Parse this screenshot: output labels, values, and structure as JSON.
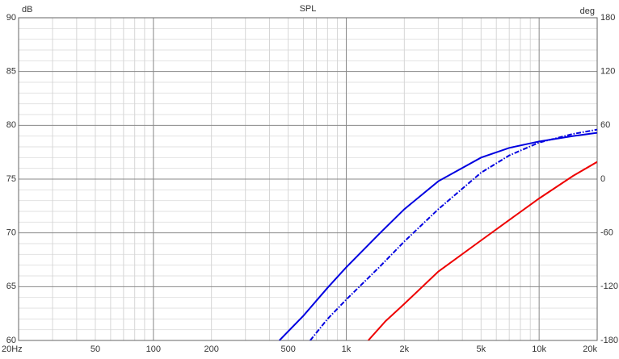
{
  "chart_data": {
    "type": "line",
    "title": "SPL",
    "ylabel": "dB",
    "y2label": "deg",
    "xscale": "log",
    "xlim": [
      20,
      20000
    ],
    "xticks": [
      {
        "value": 20,
        "label": "20Hz"
      },
      50,
      100,
      200,
      500,
      {
        "value": 1000,
        "label": "1k"
      },
      {
        "value": 2000,
        "label": "2k"
      },
      {
        "value": 5000,
        "label": "5k"
      },
      {
        "value": 10000,
        "label": "10k"
      },
      {
        "value": 20000,
        "label": "20k"
      }
    ],
    "xmajor_grid": [
      100,
      1000,
      10000
    ],
    "xminor_grid": [
      30,
      40,
      50,
      60,
      70,
      80,
      90,
      200,
      300,
      400,
      500,
      600,
      700,
      800,
      900,
      2000,
      3000,
      4000,
      5000,
      6000,
      7000,
      8000,
      9000
    ],
    "ylim": [
      60,
      90
    ],
    "yticks": [
      60,
      65,
      70,
      75,
      80,
      85,
      90
    ],
    "yminor_grid": [
      61,
      62,
      63,
      64,
      66,
      67,
      68,
      69,
      71,
      72,
      73,
      74,
      76,
      77,
      78,
      79,
      81,
      82,
      83,
      84,
      86,
      87,
      88,
      89
    ],
    "y2lim": [
      -180,
      180
    ],
    "y2ticks": [
      -180,
      -120,
      -60,
      0,
      60,
      120,
      180
    ],
    "grid": true,
    "series": [
      {
        "color": "#0000e0",
        "style": "solid",
        "x": [
          450,
          600,
          800,
          1000,
          1500,
          2000,
          3000,
          5000,
          7000,
          10000,
          15000,
          20000
        ],
        "values": [
          60,
          62.3,
          64.9,
          66.8,
          70.0,
          72.2,
          74.8,
          77.0,
          77.9,
          78.5,
          79.0,
          79.3
        ]
      },
      {
        "color": "#0000e0",
        "style": "dashdot",
        "x": [
          650,
          800,
          1000,
          1500,
          2000,
          3000,
          5000,
          7000,
          10000,
          15000,
          20000
        ],
        "values": [
          60,
          62.0,
          63.8,
          66.9,
          69.2,
          72.2,
          75.6,
          77.2,
          78.4,
          79.2,
          79.6
        ]
      },
      {
        "color": "#ee0000",
        "style": "solid",
        "x": [
          1300,
          1600,
          2000,
          3000,
          5000,
          7000,
          10000,
          15000,
          20000
        ],
        "values": [
          60,
          61.8,
          63.4,
          66.4,
          69.3,
          71.2,
          73.2,
          75.3,
          76.6
        ]
      }
    ]
  }
}
